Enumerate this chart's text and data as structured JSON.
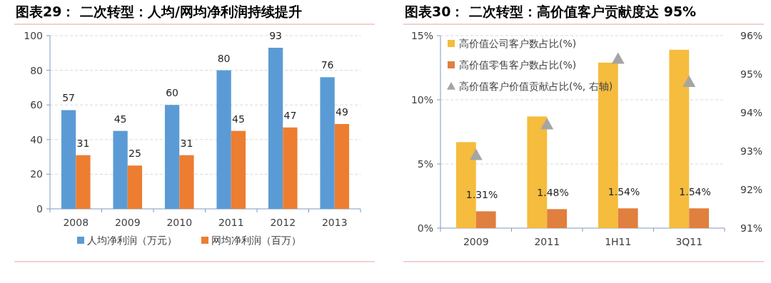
{
  "chart_data": [
    {
      "type": "bar",
      "title": "图表29： 二次转型：人均/网均净利润持续提升",
      "categories": [
        "2008",
        "2009",
        "2010",
        "2011",
        "2012",
        "2013"
      ],
      "series": [
        {
          "name": "人均净利润（万元）",
          "color": "#5b9bd5",
          "values": [
            57,
            45,
            60,
            80,
            93,
            76
          ]
        },
        {
          "name": "网均净利润（百万）",
          "color": "#ed7d31",
          "values": [
            31,
            25,
            31,
            45,
            47,
            49
          ]
        }
      ],
      "ylim": [
        0,
        100
      ],
      "yticks": [
        0,
        20,
        40,
        60,
        80,
        100
      ],
      "grid": "y",
      "legend": "bottom",
      "data_labels": true
    },
    {
      "type": "bar",
      "title": "图表30： 二次转型：高价值客户贡献度达 95%",
      "categories": [
        "2009",
        "2011",
        "1H11",
        "3Q11"
      ],
      "series": [
        {
          "name": "高价值公司客户数占比(%)",
          "color": "#f5bc3d",
          "values": [
            6.7,
            8.7,
            12.9,
            13.9
          ]
        },
        {
          "name": "高价值零售客户数占比(%)",
          "color": "#e07f3e",
          "values": [
            1.31,
            1.48,
            1.54,
            1.54
          ],
          "value_labels": [
            "1.31%",
            "1.48%",
            "1.54%",
            "1.54%"
          ]
        },
        {
          "name": "高价值客户价值贡献占比(%, 右轴)",
          "type": "scatter",
          "axis": "y2",
          "marker": "triangle",
          "color": "#a5a5a5",
          "values": [
            92.9,
            93.7,
            95.4,
            94.8
          ]
        }
      ],
      "ylim": [
        0,
        15
      ],
      "yticks": [
        {
          "value": 0,
          "label": "0%"
        },
        {
          "value": 5,
          "label": "5%"
        },
        {
          "value": 10,
          "label": "10%"
        },
        {
          "value": 15,
          "label": "15%"
        }
      ],
      "y2lim": [
        91,
        96
      ],
      "y2ticks": [
        {
          "value": 91,
          "label": "91%"
        },
        {
          "value": 92,
          "label": "92%"
        },
        {
          "value": 93,
          "label": "93%"
        },
        {
          "value": 94,
          "label": "94%"
        },
        {
          "value": 95,
          "label": "95%"
        },
        {
          "value": 96,
          "label": "96%"
        }
      ],
      "grid": "y",
      "legend": "top left"
    }
  ]
}
